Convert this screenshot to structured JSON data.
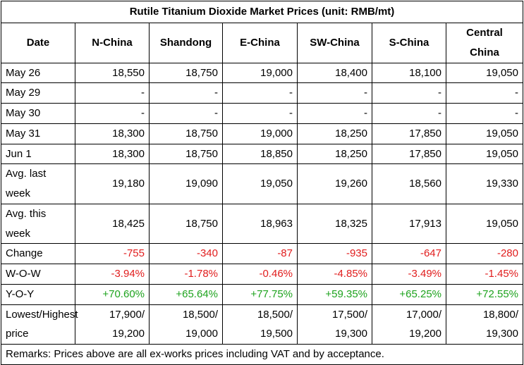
{
  "title": "Rutile Titanium Dioxide Market Prices (unit: RMB/mt)",
  "headers": [
    "Date",
    "N-China",
    "Shandong",
    "E-China",
    "SW-China",
    "S-China",
    "Central China"
  ],
  "rows": [
    {
      "label": "May 26",
      "values": [
        "18,550",
        "18,750",
        "19,000",
        "18,400",
        "18,100",
        "19,050"
      ]
    },
    {
      "label": "May 29",
      "values": [
        "-",
        "-",
        "-",
        "-",
        "-",
        "-"
      ]
    },
    {
      "label": "May 30",
      "values": [
        "-",
        "-",
        "-",
        "-",
        "-",
        "-"
      ]
    },
    {
      "label": "May 31",
      "values": [
        "18,300",
        "18,750",
        "19,000",
        "18,250",
        "17,850",
        "19,050"
      ]
    },
    {
      "label": "Jun 1",
      "values": [
        "18,300",
        "18,750",
        "18,850",
        "18,250",
        "17,850",
        "19,050"
      ]
    },
    {
      "label": "Avg. last week",
      "values": [
        "19,180",
        "19,090",
        "19,050",
        "19,260",
        "18,560",
        "19,330"
      ]
    },
    {
      "label": "Avg. this week",
      "values": [
        "18,425",
        "18,750",
        "18,963",
        "18,325",
        "17,913",
        "19,050"
      ]
    },
    {
      "label": "Change",
      "values": [
        "-755",
        "-340",
        "-87",
        "-935",
        "-647",
        "-280"
      ]
    },
    {
      "label": "W-O-W",
      "values": [
        "-3.94%",
        "-1.78%",
        "-0.46%",
        "-4.85%",
        "-3.49%",
        "-1.45%"
      ]
    },
    {
      "label": "Y-O-Y",
      "values": [
        "+70.60%",
        "+65.64%",
        "+77.75%",
        "+59.35%",
        "+65.25%",
        "+72.55%"
      ]
    },
    {
      "label": "Lowest/Highest price",
      "values": [
        "17,900/ 19,200",
        "18,500/ 19,000",
        "18,500/ 19,500",
        "17,500/ 19,300",
        "17,000/ 19,200",
        "18,800/ 19,300"
      ]
    }
  ],
  "remarks": "Remarks: Prices above are all ex-works prices including VAT and by acceptance.",
  "colors": {
    "negative": "#e11d1d",
    "positive": "#1ea31e"
  }
}
